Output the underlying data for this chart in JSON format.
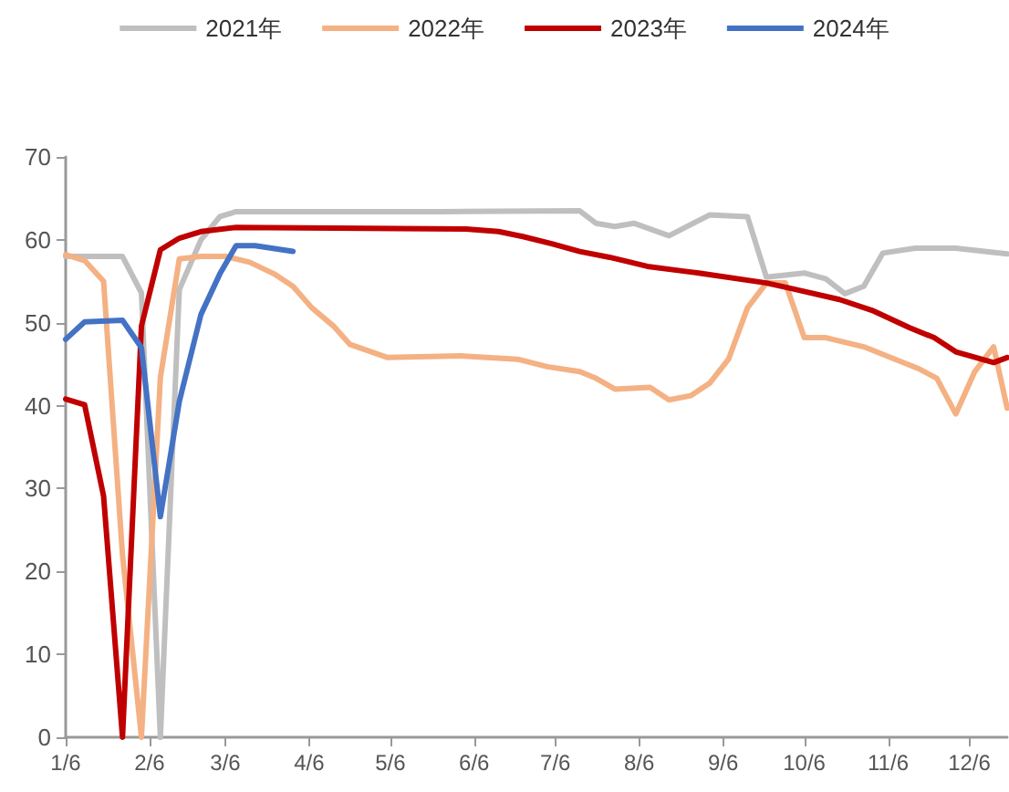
{
  "chart_data": {
    "type": "line",
    "legend": "top",
    "grid": false,
    "marker": "none",
    "line_style": "solid",
    "xlim": [
      "--01-06",
      "--12-20"
    ],
    "ylim": [
      0,
      70
    ],
    "yticks": [
      0,
      10,
      20,
      30,
      40,
      50,
      60,
      70
    ],
    "xticks": [
      {
        "value": "--01-06",
        "label": "1/6"
      },
      {
        "value": "--02-06",
        "label": "2/6"
      },
      {
        "value": "--03-06",
        "label": "3/6"
      },
      {
        "value": "--04-06",
        "label": "4/6"
      },
      {
        "value": "--05-06",
        "label": "5/6"
      },
      {
        "value": "--06-06",
        "label": "6/6"
      },
      {
        "value": "--07-06",
        "label": "7/6"
      },
      {
        "value": "--08-06",
        "label": "8/6"
      },
      {
        "value": "--09-06",
        "label": "9/6"
      },
      {
        "value": "--10-06",
        "label": "10/6"
      },
      {
        "value": "--11-06",
        "label": "11/6"
      },
      {
        "value": "--12-06",
        "label": "12/6"
      }
    ],
    "series": [
      {
        "name": "2021年",
        "color": "#bfbfbf",
        "x": [
          "--01-06",
          "--01-27",
          "--02-03",
          "--02-10",
          "--02-17",
          "--02-25",
          "--03-04",
          "--03-10",
          "--05-25",
          "--07-15",
          "--07-21",
          "--07-28",
          "--08-04",
          "--08-17",
          "--09-01",
          "--09-15",
          "--09-22",
          "--10-06",
          "--10-14",
          "--10-21",
          "--10-28",
          "--11-04",
          "--11-16",
          "--12-01",
          "--12-20"
        ],
        "values": [
          58,
          58,
          53.6,
          0,
          54,
          60,
          62.8,
          63.4,
          63.4,
          63.5,
          62,
          61.6,
          62,
          60.5,
          63,
          62.8,
          55.5,
          56,
          55.3,
          53.5,
          54.4,
          58.4,
          59,
          59,
          58.3
        ]
      },
      {
        "name": "2022年",
        "color": "#f4b183",
        "x": [
          "--01-06",
          "--01-13",
          "--01-20",
          "--01-27",
          "--02-03",
          "--02-10",
          "--02-17",
          "--02-25",
          "--03-06",
          "--03-15",
          "--03-24",
          "--03-31",
          "--04-07",
          "--04-15",
          "--04-21",
          "--05-05",
          "--06-01",
          "--06-22",
          "--07-03",
          "--07-15",
          "--07-21",
          "--07-28",
          "--08-10",
          "--08-17",
          "--08-25",
          "--09-01",
          "--09-08",
          "--09-15",
          "--09-22",
          "--09-29",
          "--10-06",
          "--10-14",
          "--10-28",
          "--11-17",
          "--11-24",
          "--12-01",
          "--12-08",
          "--12-15",
          "--12-20"
        ],
        "values": [
          58.2,
          57.5,
          55,
          22,
          0,
          43.4,
          57.7,
          58,
          58,
          57.3,
          55.9,
          54.4,
          51.8,
          49.6,
          47.4,
          45.8,
          46,
          45.6,
          44.7,
          44.1,
          43.3,
          42,
          42.2,
          40.7,
          41.2,
          42.7,
          45.6,
          51.8,
          54.8,
          54.8,
          48.2,
          48.2,
          47.1,
          44.5,
          43.3,
          39,
          44.1,
          47.1,
          39.7
        ]
      },
      {
        "name": "2023年",
        "color": "#c00000",
        "x": [
          "--01-06",
          "--01-13",
          "--01-20",
          "--01-27",
          "--02-03",
          "--02-10",
          "--02-17",
          "--02-25",
          "--03-10",
          "--06-03",
          "--06-15",
          "--06-24",
          "--07-05",
          "--07-15",
          "--07-26",
          "--08-09",
          "--08-23",
          "--08-28",
          "--09-22",
          "--10-03",
          "--10-19",
          "--10-31",
          "--11-14",
          "--11-23",
          "--12-01",
          "--12-15",
          "--12-20"
        ],
        "values": [
          40.8,
          40.1,
          29.1,
          0,
          49.6,
          58.8,
          60.2,
          61,
          61.5,
          61.3,
          61,
          60.4,
          59.5,
          58.6,
          57.9,
          56.8,
          56.2,
          56,
          54.8,
          54,
          52.8,
          51.5,
          49.4,
          48.2,
          46.5,
          45.2,
          45.8
        ]
      },
      {
        "name": "2024年",
        "color": "#4472c4",
        "x": [
          "--01-06",
          "--01-13",
          "--01-27",
          "--02-03",
          "--02-10",
          "--02-17",
          "--02-25",
          "--03-04",
          "--03-10",
          "--03-17",
          "--03-31"
        ],
        "values": [
          48,
          50.1,
          50.3,
          47,
          26.6,
          40.5,
          51,
          55.9,
          59.3,
          59.3,
          58.6
        ]
      }
    ]
  }
}
